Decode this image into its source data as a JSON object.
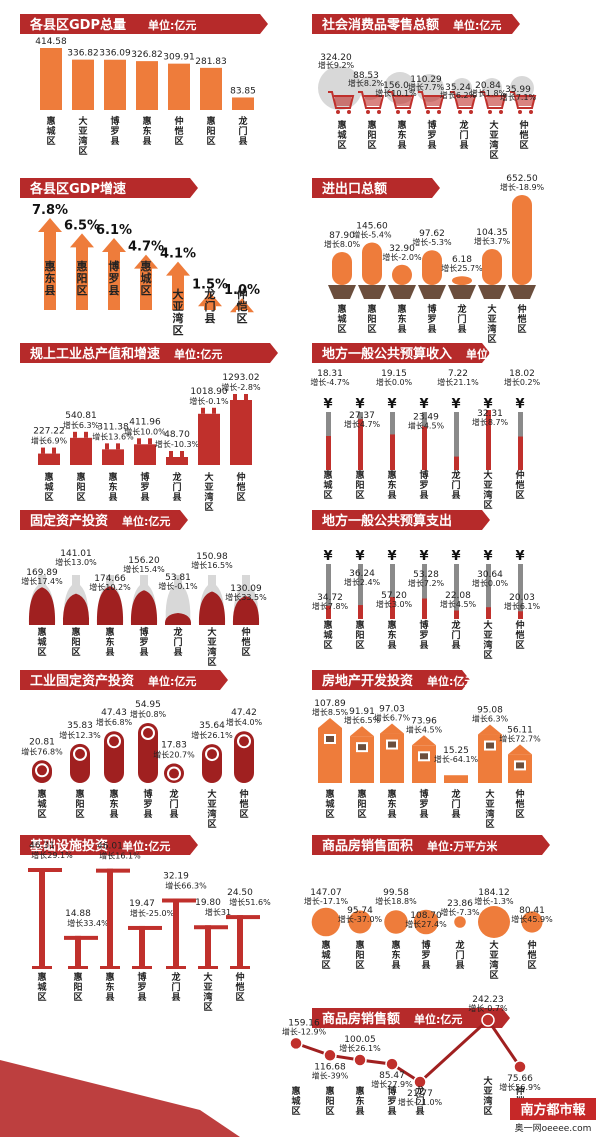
{
  "colors": {
    "header": "#b62a2a",
    "orange": "#ee7c3b",
    "darkred": "#a02020",
    "red": "#c0302c",
    "grey": "#8a8a8a",
    "lightgrey": "#d8d8d8",
    "brown": "#6b4e3d"
  },
  "footer": {
    "logo": "南方都市報",
    "site": "奥一网oeeee.com"
  },
  "chart_data": [
    {
      "id": "gdp",
      "type": "bar",
      "title": "各县区GDP总量",
      "unit": "单位:亿元",
      "categories": [
        "惠城区",
        "大亚湾区",
        "博罗县",
        "惠东县",
        "仲恺区",
        "惠阳区",
        "龙门县"
      ],
      "values": [
        "414.58",
        "336.82",
        "336.09",
        "326.82",
        "309.91",
        "281.83",
        "83.85"
      ]
    },
    {
      "id": "retail",
      "type": "bar",
      "title": "社会消费品零售总额",
      "unit": "单位:亿元",
      "categories": [
        "惠城区",
        "惠阳区",
        "惠东县",
        "博罗县",
        "龙门县",
        "大亚湾区",
        "仲恺区"
      ],
      "values": [
        "324.20",
        "88.53",
        "156.0",
        "110.29",
        "35.24",
        "20.84",
        "35.99"
      ],
      "growth": [
        "增长9.2%",
        "增长8.2%",
        "增长10.1%",
        "增长7.7%",
        "增长6.2%",
        "增长1.8%",
        "增长7.1%"
      ]
    },
    {
      "id": "gdpgrowth",
      "type": "bar",
      "title": "各县区GDP增速",
      "unit": "",
      "categories": [
        "惠东县",
        "惠阳区",
        "博罗县",
        "惠城区",
        "大亚湾区",
        "龙门县",
        "仲恺区"
      ],
      "values": [
        "7.8%",
        "6.5%",
        "6.1%",
        "4.7%",
        "4.1%",
        "1.5%",
        "1.0%"
      ]
    },
    {
      "id": "trade",
      "type": "bar",
      "title": "进出口总额",
      "unit": "",
      "categories": [
        "惠城区",
        "惠阳区",
        "惠东县",
        "博罗县",
        "龙门县",
        "大亚湾区",
        "仲恺区"
      ],
      "values": [
        "87.90",
        "145.60",
        "32.90",
        "97.62",
        "6.18",
        "104.35",
        "652.50"
      ],
      "growth": [
        "增长8.0%",
        "增长-5.4%",
        "增长-2.0%",
        "增长-5.3%",
        "增长25.7%",
        "增长3.7%",
        "增长-18.9%"
      ]
    },
    {
      "id": "industry",
      "type": "bar",
      "title": "规上工业总产值和增速",
      "unit": "单位:亿元",
      "categories": [
        "惠城区",
        "惠阳区",
        "惠东县",
        "博罗县",
        "龙门县",
        "大亚湾区",
        "仲恺区"
      ],
      "values": [
        "227.22",
        "540.81",
        "311.38",
        "411.96",
        "48.70",
        "1018.90",
        "1293.02"
      ],
      "growth": [
        "增长6.9%",
        "增长6.3%",
        "增长13.6%",
        "增长10.0%",
        "增长-10.3%",
        "增长-0.1%",
        "增长-2.8%"
      ]
    },
    {
      "id": "income",
      "type": "bar",
      "title": "地方一般公共预算收入",
      "unit": "单位:亿元",
      "categories": [
        "惠城区",
        "惠阳区",
        "惠东县",
        "博罗县",
        "龙门县",
        "大亚湾区",
        "仲恺区"
      ],
      "values": [
        "18.31",
        "27.37",
        "19.15",
        "23.49",
        "7.22",
        "32.31",
        "18.02"
      ],
      "growth": [
        "增长-4.7%",
        "增长4.7%",
        "增长0.0%",
        "增长4.5%",
        "增长21.1%",
        "增长8.7%",
        "增长0.2%"
      ]
    },
    {
      "id": "fixed",
      "type": "bar",
      "title": "固定资产投资",
      "unit": "单位:亿元",
      "categories": [
        "惠城区",
        "惠阳区",
        "惠东县",
        "博罗县",
        "龙门县",
        "大亚湾区",
        "仲恺区"
      ],
      "values": [
        "169.89",
        "141.01",
        "174.66",
        "156.20",
        "53.81",
        "150.98",
        "130.09"
      ],
      "growth": [
        "增长17.4%",
        "增长13.0%",
        "增长10.2%",
        "增长15.4%",
        "增长-0.1%",
        "增长16.5%",
        "增长33.5%"
      ]
    },
    {
      "id": "expend",
      "type": "bar",
      "title": "地方一般公共预算支出",
      "unit": "",
      "categories": [
        "惠城区",
        "惠阳区",
        "惠东县",
        "博罗县",
        "龙门县",
        "大亚湾区",
        "仲恺区"
      ],
      "values": [
        "34.72",
        "36.24",
        "57.20",
        "53.28",
        "22.08",
        "30.64",
        "20.03"
      ],
      "growth": [
        "增长7.8%",
        "增长2.4%",
        "增长3.0%",
        "增长7.2%",
        "增长4.5%",
        "增长0.0%",
        "增长6.1%"
      ]
    },
    {
      "id": "indfixed",
      "type": "bar",
      "title": "工业固定资产投资",
      "unit": "单位:亿元",
      "categories": [
        "惠城区",
        "惠阳区",
        "惠东县",
        "博罗县",
        "龙门县",
        "大亚湾区",
        "仲恺区"
      ],
      "values": [
        "20.81",
        "35.83",
        "47.43",
        "54.95",
        "17.83",
        "35.64",
        "47.42"
      ],
      "growth": [
        "增长76.8%",
        "增长12.3%",
        "增长6.8%",
        "增长0.8%",
        "增长20.7%",
        "增长26.1%",
        "增长4.0%"
      ]
    },
    {
      "id": "realestate",
      "type": "bar",
      "title": "房地产开发投资",
      "unit": "单位:亿元",
      "categories": [
        "惠城区",
        "惠阳区",
        "惠东县",
        "博罗县",
        "龙门县",
        "大亚湾区",
        "仲恺区"
      ],
      "values": [
        "107.89",
        "91.91",
        "97.03",
        "73.96",
        "15.25",
        "95.08",
        "56.11"
      ],
      "growth": [
        "增长8.5%",
        "增长6.5%",
        "增长6.7%",
        "增长4.5%",
        "增长-64.1%",
        "增长6.3%",
        "增长72.7%"
      ]
    },
    {
      "id": "infra",
      "type": "bar",
      "title": "基础设施投资",
      "unit": "单位:亿元",
      "categories": [
        "惠城区",
        "惠阳区",
        "惠东县",
        "博罗县",
        "龙门县",
        "大亚湾区",
        "仲恺区"
      ],
      "values": [
        "46.31",
        "14.88",
        "46.01",
        "19.47",
        "32.19",
        "19.80",
        "24.50"
      ],
      "growth": [
        "增长29.1%",
        "增长33.4%",
        "增长16.1%",
        "增长-25.0%",
        "增长66.3%",
        "增长31",
        "增长51.6%"
      ]
    },
    {
      "id": "housearea",
      "type": "scatter",
      "title": "商品房销售面积",
      "unit": "单位:万平方米",
      "categories": [
        "惠城区",
        "惠阳区",
        "惠东县",
        "博罗县",
        "龙门县",
        "大亚湾区",
        "仲恺区"
      ],
      "values": [
        "147.07",
        "95.74",
        "99.58",
        "108.70",
        "23.86",
        "184.12",
        "80.41"
      ],
      "growth": [
        "增长-17.1%",
        "增长-37.0%",
        "增长18.8%",
        "增长27.4%",
        "增长-7.3%",
        "增长-1.3%",
        "增长45.9%"
      ]
    },
    {
      "id": "housesales",
      "type": "line",
      "title": "商品房销售额",
      "unit": "单位:亿元",
      "categories": [
        "惠城区",
        "惠阳区",
        "惠东县",
        "博罗县",
        "龙门县",
        "大亚湾区",
        "仲恺区"
      ],
      "values": [
        "159.16",
        "116.68",
        "100.05",
        "85.47",
        "21.77",
        "242.23",
        "75.66"
      ],
      "growth": [
        "增长-12.9%",
        "增长-39%",
        "增长26.1%",
        "增长27.9%",
        "增长-21.0%",
        "增长-0.7%",
        "增长56.9%"
      ]
    }
  ]
}
